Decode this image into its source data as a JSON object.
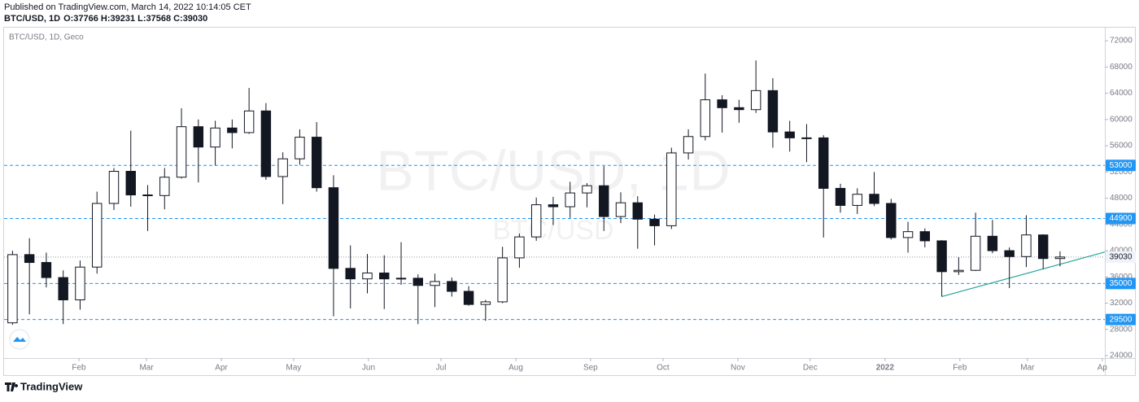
{
  "header": {
    "published": "Published on TradingView.com, March 14, 2022 10:14:05 CET",
    "symbol": "BTC/USD, 1D",
    "ohlc_labels": [
      "O:",
      "H:",
      "L:",
      "C:"
    ],
    "ohlc": [
      37766,
      39231,
      37568,
      39030
    ]
  },
  "logo": "TradingView",
  "chart_data": {
    "type": "candlestick",
    "legend": "BTC/USD, 1D, Geco",
    "watermark": [
      "BTC/USD, 1D",
      "BTC/USD"
    ],
    "up_color": "#ffffff",
    "down_color": "#131722",
    "wick_color": "#131722",
    "open": [
      29000,
      39400,
      38200,
      35900,
      32500,
      37500,
      47200,
      52100,
      48500,
      48400,
      51200,
      58900,
      55800,
      58700,
      58000,
      61300,
      51300,
      54000,
      57300,
      49600,
      37300,
      35700,
      36600,
      35700,
      35800,
      34700,
      35300,
      33800,
      31800,
      32200,
      38900,
      42100,
      47000,
      46700,
      48800,
      49900,
      45200,
      47300,
      44800,
      43800,
      54900,
      57400,
      63000,
      61800,
      61500,
      64400,
      58100,
      57200,
      57200,
      49500,
      46900,
      48600,
      47200,
      42000,
      42900,
      41500,
      36800,
      37000,
      42200,
      40000,
      39100,
      42400,
      38800
    ],
    "high": [
      40000,
      41900,
      39700,
      37000,
      38500,
      49000,
      52600,
      58300,
      50000,
      52600,
      61700,
      60000,
      59800,
      60000,
      64800,
      62500,
      55000,
      58500,
      59600,
      51500,
      40800,
      39500,
      39300,
      41300,
      36400,
      36500,
      35900,
      34600,
      32500,
      40600,
      42600,
      48100,
      48200,
      50500,
      50300,
      52900,
      48900,
      48300,
      45500,
      55700,
      58500,
      67000,
      63700,
      63000,
      69000,
      66300,
      59800,
      59300,
      57600,
      50200,
      49500,
      52000,
      47900,
      44400,
      43400,
      41600,
      39000,
      45800,
      44700,
      40500,
      45400,
      42500,
      39900
    ],
    "low": [
      28700,
      30300,
      34400,
      28800,
      31000,
      36500,
      46200,
      46700,
      43000,
      46300,
      51000,
      50400,
      53000,
      55600,
      57800,
      50800,
      47100,
      53100,
      49000,
      30000,
      31200,
      33500,
      31100,
      34800,
      28800,
      31400,
      33000,
      31600,
      29300,
      32000,
      37400,
      41500,
      43900,
      45000,
      46600,
      43000,
      44200,
      40300,
      40800,
      43300,
      53900,
      56800,
      58000,
      59500,
      61000,
      55700,
      55100,
      53500,
      42000,
      45800,
      45600,
      46800,
      41700,
      39700,
      40500,
      33000,
      36300,
      36900,
      39600,
      34300,
      37500,
      37200,
      37600
    ],
    "close": [
      39400,
      38200,
      35900,
      32500,
      37500,
      47200,
      52100,
      48500,
      48400,
      51200,
      58900,
      55800,
      58700,
      58000,
      61300,
      51300,
      54000,
      57300,
      49600,
      37300,
      35700,
      36600,
      35700,
      35800,
      34700,
      35300,
      33800,
      31800,
      32200,
      38900,
      42100,
      47000,
      46700,
      48800,
      49900,
      45200,
      47300,
      44800,
      43800,
      54900,
      57400,
      63000,
      61800,
      61500,
      64400,
      58100,
      57200,
      57200,
      49500,
      46900,
      48600,
      47200,
      42000,
      42900,
      41500,
      36800,
      37000,
      42200,
      40000,
      39100,
      42400,
      38800,
      39030
    ],
    "xlim": [
      -0.5,
      64.65
    ],
    "xticks": [
      {
        "value": 3.93,
        "label": "Feb"
      },
      {
        "value": 7.93,
        "label": "Mar"
      },
      {
        "value": 12.36,
        "label": "Apr"
      },
      {
        "value": 16.64,
        "label": "May"
      },
      {
        "value": 21.07,
        "label": "Jun"
      },
      {
        "value": 25.36,
        "label": "Jul"
      },
      {
        "value": 29.79,
        "label": "Aug"
      },
      {
        "value": 34.21,
        "label": "Sep"
      },
      {
        "value": 38.5,
        "label": "Oct"
      },
      {
        "value": 42.93,
        "label": "Nov"
      },
      {
        "value": 47.21,
        "label": "Dec"
      },
      {
        "value": 51.64,
        "label": "2022"
      },
      {
        "value": 56.07,
        "label": "Feb"
      },
      {
        "value": 60.07,
        "label": "Mar"
      },
      {
        "value": 64.5,
        "label": "Ap"
      }
    ],
    "ylim": [
      23630,
      74120
    ],
    "yticks": [
      24000,
      28000,
      32000,
      36000,
      40000,
      44000,
      48000,
      52000,
      56000,
      60000,
      64000,
      68000,
      72000
    ],
    "levels": [
      53000,
      44900,
      35000,
      29500
    ],
    "level_color": "#2196f3",
    "price_line": 39030,
    "price_line_color": "#9598a1",
    "trendline": {
      "x": [
        55,
        64.65
      ],
      "y": [
        33000,
        39800
      ],
      "color": "#26a69a"
    }
  }
}
